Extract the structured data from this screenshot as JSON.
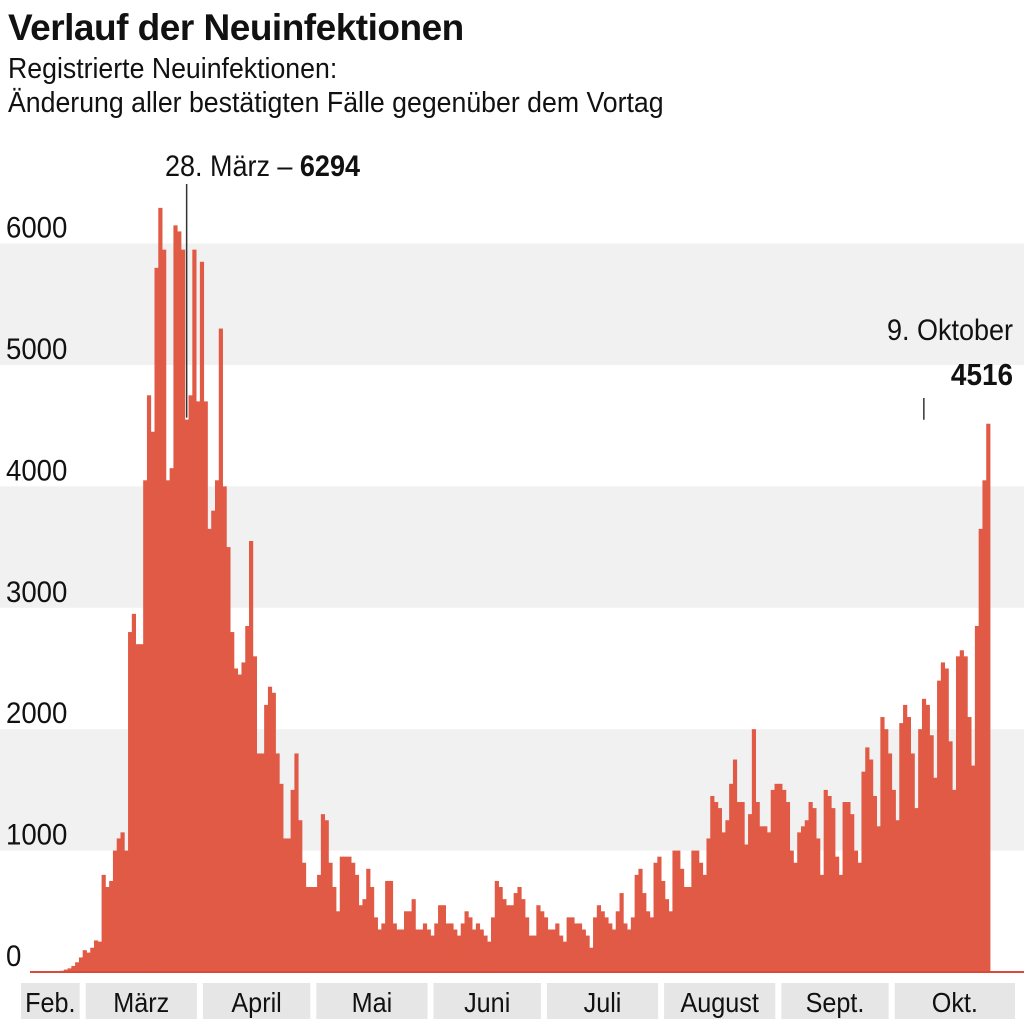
{
  "header": {
    "title": "Verlauf der Neuinfektionen",
    "subtitle_line1": "Registrierte Neuinfektionen:",
    "subtitle_line2": "Änderung aller bestätigten Fälle gegenüber dem Vortag"
  },
  "colors": {
    "bar": "#e05a45",
    "baseline": "#d94a3a",
    "band": "#f1f1f1",
    "month_bg": "#e6e6e6"
  },
  "chart_data": {
    "type": "bar",
    "title": "Verlauf der Neuinfektionen",
    "subtitle": "Registrierte Neuinfektionen: Änderung aller bestätigten Fälle gegenüber dem Vortag",
    "xlabel": "",
    "ylabel": "",
    "ylim": [
      0,
      6400
    ],
    "yticks": [
      0,
      1000,
      2000,
      3000,
      4000,
      5000,
      6000
    ],
    "grid": "alternating horizontal bands",
    "months": [
      "Feb.",
      "März",
      "April",
      "Mai",
      "Juni",
      "Juli",
      "August",
      "Sept.",
      "Okt."
    ],
    "annotations": [
      {
        "date": "2020-03-28",
        "label": "28. März – ",
        "value_label": "6294"
      },
      {
        "date": "2020-10-09",
        "label": "9. Oktober",
        "value_label": "4516"
      }
    ],
    "start_date": "2020-02-24",
    "values": [
      10,
      20,
      30,
      50,
      80,
      120,
      180,
      160,
      200,
      260,
      250,
      800,
      700,
      750,
      1000,
      1100,
      1150,
      1000,
      2800,
      2950,
      2700,
      2700,
      4050,
      4750,
      4450,
      5800,
      6294,
      5950,
      4050,
      4150,
      6150,
      6100,
      5950,
      4550,
      4750,
      5950,
      4700,
      5850,
      4700,
      3650,
      3800,
      4050,
      5300,
      4000,
      3500,
      2800,
      2500,
      2450,
      2550,
      2850,
      3550,
      2600,
      1800,
      1800,
      2200,
      2350,
      2300,
      1800,
      1550,
      1100,
      1100,
      1500,
      1800,
      1250,
      900,
      700,
      700,
      700,
      800,
      1300,
      1250,
      900,
      700,
      500,
      950,
      950,
      950,
      900,
      800,
      550,
      600,
      850,
      700,
      450,
      350,
      400,
      750,
      750,
      400,
      350,
      350,
      500,
      500,
      600,
      350,
      350,
      400,
      350,
      300,
      400,
      550,
      550,
      400,
      400,
      350,
      300,
      400,
      500,
      450,
      350,
      400,
      350,
      300,
      250,
      450,
      750,
      700,
      600,
      550,
      550,
      650,
      700,
      600,
      450,
      300,
      300,
      550,
      500,
      450,
      350,
      350,
      400,
      300,
      250,
      450,
      450,
      400,
      400,
      350,
      300,
      200,
      450,
      550,
      500,
      450,
      400,
      350,
      500,
      650,
      400,
      350,
      450,
      800,
      850,
      650,
      500,
      450,
      900,
      950,
      750,
      600,
      500,
      1000,
      1000,
      850,
      700,
      700,
      1000,
      1000,
      900,
      800,
      1100,
      1450,
      1400,
      1350,
      1150,
      1250,
      1550,
      1750,
      1400,
      1400,
      1050,
      1300,
      2000,
      1400,
      1200,
      1200,
      1150,
      1500,
      1550,
      1550,
      1500,
      1400,
      1000,
      900,
      1150,
      1200,
      1250,
      1400,
      1350,
      1100,
      800,
      1500,
      1450,
      1350,
      950,
      800,
      1400,
      1400,
      1300,
      1000,
      900,
      1650,
      1850,
      1750,
      1450,
      1200,
      2100,
      2000,
      1800,
      1500,
      1250,
      2050,
      2200,
      2100,
      1800,
      1350,
      2000,
      2250,
      2200,
      1950,
      1600,
      2400,
      2550,
      2500,
      1900,
      1500,
      2600,
      2650,
      2600,
      2100,
      1700,
      2850,
      3650,
      4050,
      4516
    ]
  }
}
